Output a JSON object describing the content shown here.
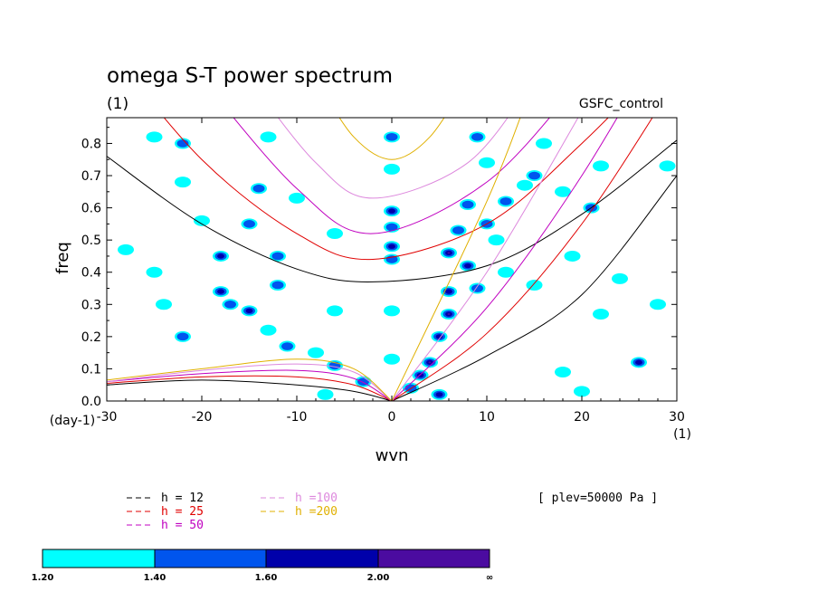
{
  "chart_data": {
    "type": "contour",
    "title": "omega S-T power spectrum",
    "subtitle": "(1)",
    "experiment": "GSFC_control",
    "xlabel": "wvn",
    "xunit": "(1)",
    "ylabel": "freq",
    "yunit": "(day-1)",
    "xlim": [
      -30,
      30
    ],
    "ylim": [
      0,
      0.88
    ],
    "xticks": [
      "-30",
      "-20",
      "-10",
      "0",
      "10",
      "20",
      "30"
    ],
    "yticks": [
      "0.0",
      "0.1",
      "0.2",
      "0.3",
      "0.4",
      "0.5",
      "0.6",
      "0.7",
      "0.8"
    ],
    "level_note": "[ plev=50000 Pa ]",
    "dispersion_curves": [
      {
        "name": "h = 12",
        "color": "#000000",
        "kelvin": [
          [
            0,
            0
          ],
          [
            10,
            0.14
          ],
          [
            20,
            0.33
          ],
          [
            30,
            0.7
          ]
        ],
        "er": [
          [
            -30,
            0.05
          ],
          [
            -20,
            0.065
          ],
          [
            -10,
            0.05
          ],
          [
            -4,
            0.03
          ],
          [
            0,
            0
          ]
        ],
        "ig": [
          [
            -30,
            0.76
          ],
          [
            -20,
            0.55
          ],
          [
            -10,
            0.41
          ],
          [
            -2,
            0.37
          ],
          [
            10,
            0.42
          ],
          [
            20,
            0.58
          ],
          [
            30,
            0.81
          ]
        ]
      },
      {
        "name": "h = 25",
        "color": "#e00000",
        "kelvin": [
          [
            0,
            0
          ],
          [
            10,
            0.21
          ],
          [
            20,
            0.55
          ],
          [
            30,
            1.0
          ]
        ],
        "er": [
          [
            -30,
            0.055
          ],
          [
            -20,
            0.075
          ],
          [
            -10,
            0.075
          ],
          [
            -4,
            0.05
          ],
          [
            0,
            0
          ]
        ],
        "ig": [
          [
            -30,
            1.1
          ],
          [
            -20,
            0.75
          ],
          [
            -10,
            0.52
          ],
          [
            -2,
            0.44
          ],
          [
            10,
            0.55
          ],
          [
            20,
            0.8
          ],
          [
            30,
            1.1
          ]
        ]
      },
      {
        "name": "h = 50",
        "color": "#c000c0",
        "kelvin": [
          [
            0,
            0
          ],
          [
            10,
            0.29
          ],
          [
            20,
            0.7
          ],
          [
            30,
            1.2
          ]
        ],
        "er": [
          [
            -30,
            0.06
          ],
          [
            -20,
            0.085
          ],
          [
            -10,
            0.095
          ],
          [
            -4,
            0.07
          ],
          [
            0,
            0
          ]
        ],
        "ig": [
          [
            -20,
            1.0
          ],
          [
            -10,
            0.66
          ],
          [
            -2,
            0.52
          ],
          [
            10,
            0.68
          ],
          [
            20,
            1.0
          ]
        ]
      },
      {
        "name": "h =100",
        "color": "#dd88dd",
        "kelvin": [
          [
            0,
            0
          ],
          [
            10,
            0.4
          ],
          [
            20,
            0.9
          ]
        ],
        "er": [
          [
            -30,
            0.06
          ],
          [
            -20,
            0.095
          ],
          [
            -10,
            0.115
          ],
          [
            -4,
            0.09
          ],
          [
            0,
            0
          ]
        ],
        "ig": [
          [
            -15,
            1.0
          ],
          [
            -8,
            0.74
          ],
          [
            -2,
            0.63
          ],
          [
            8,
            0.74
          ],
          [
            15,
            1.0
          ]
        ]
      },
      {
        "name": "h =200",
        "color": "#e0b000",
        "kelvin": [
          [
            0,
            0
          ],
          [
            10,
            0.62
          ],
          [
            15,
            1.0
          ]
        ],
        "er": [
          [
            -30,
            0.065
          ],
          [
            -20,
            0.1
          ],
          [
            -10,
            0.13
          ],
          [
            -4,
            0.1
          ],
          [
            0,
            0
          ]
        ],
        "ig": [
          [
            -8,
            1.0
          ],
          [
            -4,
            0.82
          ],
          [
            0,
            0.75
          ],
          [
            4,
            0.82
          ],
          [
            8,
            1.0
          ]
        ]
      }
    ],
    "colorbar": {
      "levels": [
        "1.20",
        "1.40",
        "1.60",
        "2.00",
        "∞"
      ],
      "colors": [
        "#00ffff",
        "#0055ee",
        "#0000aa",
        "#4b0ba0"
      ]
    },
    "power_blobs": [
      {
        "x": -25,
        "y": 0.82,
        "level": 1
      },
      {
        "x": -22,
        "y": 0.8,
        "level": 2
      },
      {
        "x": -13,
        "y": 0.82,
        "level": 1
      },
      {
        "x": -22,
        "y": 0.68,
        "level": 1
      },
      {
        "x": -14,
        "y": 0.66,
        "level": 2
      },
      {
        "x": -10,
        "y": 0.63,
        "level": 1
      },
      {
        "x": -20,
        "y": 0.56,
        "level": 1
      },
      {
        "x": -15,
        "y": 0.55,
        "level": 2
      },
      {
        "x": -6,
        "y": 0.52,
        "level": 1
      },
      {
        "x": -18,
        "y": 0.45,
        "level": 3
      },
      {
        "x": -25,
        "y": 0.4,
        "level": 1
      },
      {
        "x": -12,
        "y": 0.45,
        "level": 2
      },
      {
        "x": -18,
        "y": 0.34,
        "level": 3
      },
      {
        "x": -17,
        "y": 0.3,
        "level": 2
      },
      {
        "x": -15,
        "y": 0.28,
        "level": 3
      },
      {
        "x": -12,
        "y": 0.36,
        "level": 2
      },
      {
        "x": -22,
        "y": 0.2,
        "level": 2
      },
      {
        "x": -24,
        "y": 0.3,
        "level": 1
      },
      {
        "x": -11,
        "y": 0.17,
        "level": 2
      },
      {
        "x": -13,
        "y": 0.22,
        "level": 1
      },
      {
        "x": -8,
        "y": 0.15,
        "level": 1
      },
      {
        "x": -6,
        "y": 0.28,
        "level": 1
      },
      {
        "x": -28,
        "y": 0.47,
        "level": 1
      },
      {
        "x": -6,
        "y": 0.11,
        "level": 2
      },
      {
        "x": -3,
        "y": 0.06,
        "level": 2
      },
      {
        "x": -7,
        "y": 0.02,
        "level": 1
      },
      {
        "x": 0,
        "y": 0.82,
        "level": 2
      },
      {
        "x": 0,
        "y": 0.72,
        "level": 1
      },
      {
        "x": 0,
        "y": 0.59,
        "level": 3
      },
      {
        "x": 0,
        "y": 0.54,
        "level": 2
      },
      {
        "x": 0,
        "y": 0.48,
        "level": 3
      },
      {
        "x": 0,
        "y": 0.44,
        "level": 2
      },
      {
        "x": 0,
        "y": 0.28,
        "level": 1
      },
      {
        "x": 0,
        "y": 0.13,
        "level": 1
      },
      {
        "x": 2,
        "y": 0.04,
        "level": 2
      },
      {
        "x": 3,
        "y": 0.08,
        "level": 3
      },
      {
        "x": 4,
        "y": 0.12,
        "level": 4
      },
      {
        "x": 5,
        "y": 0.02,
        "level": 3
      },
      {
        "x": 5,
        "y": 0.2,
        "level": 3
      },
      {
        "x": 6,
        "y": 0.27,
        "level": 4
      },
      {
        "x": 6,
        "y": 0.34,
        "level": 3
      },
      {
        "x": 6,
        "y": 0.46,
        "level": 4
      },
      {
        "x": 8,
        "y": 0.42,
        "level": 3
      },
      {
        "x": 7,
        "y": 0.53,
        "level": 2
      },
      {
        "x": 8,
        "y": 0.61,
        "level": 2
      },
      {
        "x": 9,
        "y": 0.82,
        "level": 2
      },
      {
        "x": 10,
        "y": 0.74,
        "level": 1
      },
      {
        "x": 9,
        "y": 0.35,
        "level": 2
      },
      {
        "x": 11,
        "y": 0.5,
        "level": 1
      },
      {
        "x": 12,
        "y": 0.62,
        "level": 2
      },
      {
        "x": 14,
        "y": 0.67,
        "level": 1
      },
      {
        "x": 15,
        "y": 0.7,
        "level": 2
      },
      {
        "x": 16,
        "y": 0.8,
        "level": 1
      },
      {
        "x": 12,
        "y": 0.4,
        "level": 1
      },
      {
        "x": 10,
        "y": 0.55,
        "level": 2
      },
      {
        "x": 18,
        "y": 0.65,
        "level": 1
      },
      {
        "x": 21,
        "y": 0.6,
        "level": 2
      },
      {
        "x": 22,
        "y": 0.73,
        "level": 1
      },
      {
        "x": 19,
        "y": 0.45,
        "level": 1
      },
      {
        "x": 22,
        "y": 0.27,
        "level": 1
      },
      {
        "x": 18,
        "y": 0.09,
        "level": 1
      },
      {
        "x": 20,
        "y": 0.03,
        "level": 1
      },
      {
        "x": 26,
        "y": 0.12,
        "level": 3
      },
      {
        "x": 28,
        "y": 0.3,
        "level": 1
      },
      {
        "x": 24,
        "y": 0.38,
        "level": 1
      },
      {
        "x": 15,
        "y": 0.36,
        "level": 1
      },
      {
        "x": 29,
        "y": 0.73,
        "level": 1
      }
    ]
  }
}
